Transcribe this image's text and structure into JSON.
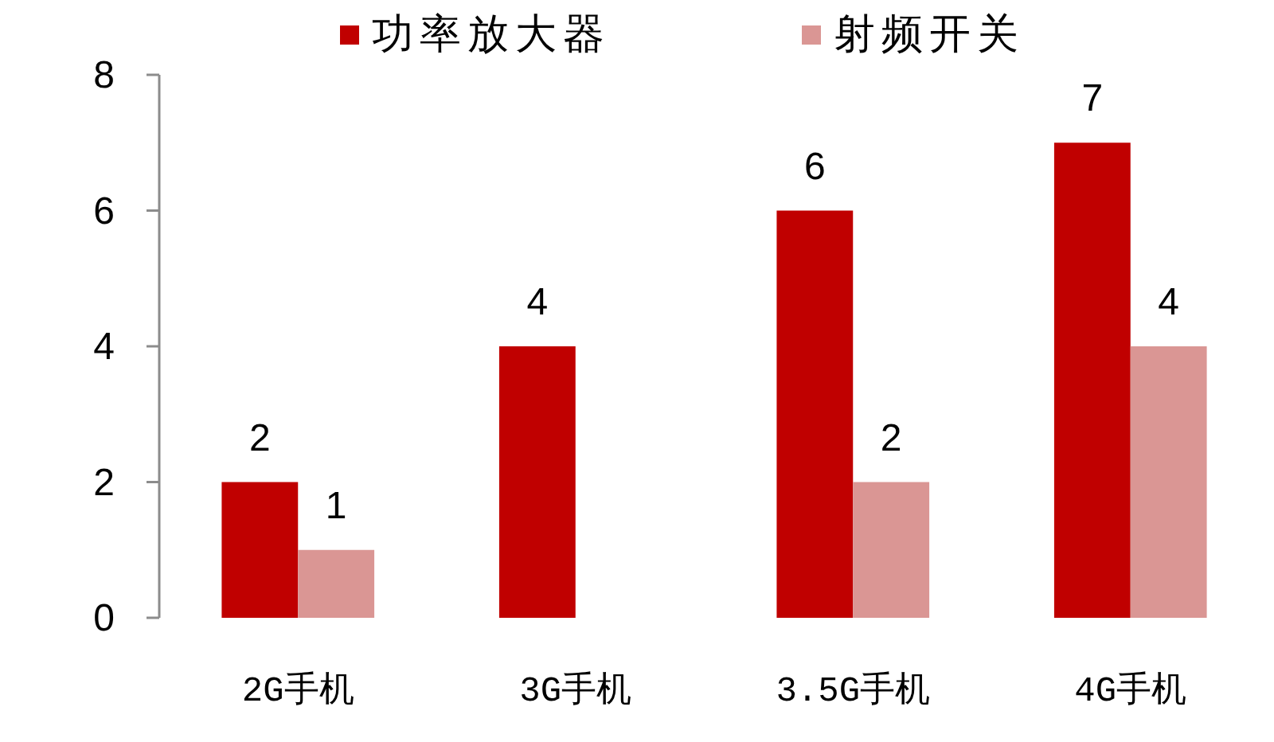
{
  "chart_data": {
    "type": "bar",
    "categories": [
      "2G手机",
      "3G手机",
      "3.5G手机",
      "4G手机"
    ],
    "series": [
      {
        "name": "功率放大器",
        "color": "#c00000",
        "values": [
          2,
          4,
          6,
          7
        ]
      },
      {
        "name": "射频开关",
        "color": "#da9694",
        "values": [
          1,
          null,
          2,
          4
        ]
      }
    ],
    "ylim": [
      0,
      8
    ],
    "yticks": [
      0,
      2,
      4,
      6,
      8
    ],
    "data_labels": true,
    "legend": "top"
  }
}
